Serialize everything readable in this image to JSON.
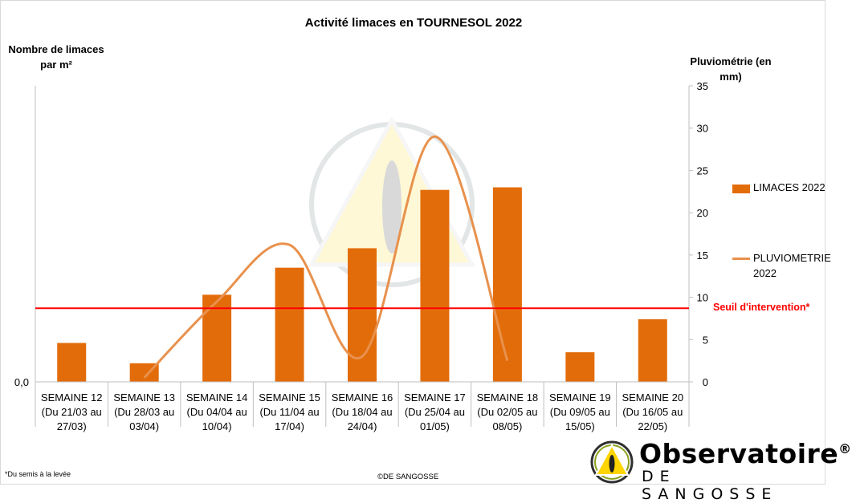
{
  "chart_data": {
    "type": "bar",
    "title": "Activité limaces en TOURNESOL 2022",
    "ylabel_left": "Nombre de limaces par m²",
    "ylabel_right": "Pluviométrie (en mm)",
    "categories": [
      "SEMAINE 12 (Du 21/03 au 27/03)",
      "SEMAINE 13 (Du 28/03 au 03/04)",
      "SEMAINE 14 (Du 04/04 au 10/04)",
      "SEMAINE 15 (Du 11/04 au 17/04)",
      "SEMAINE 16 (Du 18/04 au 24/04)",
      "SEMAINE 17 (Du 25/04 au 01/05)",
      "SEMAINE 18 (Du 02/05 au 08/05)",
      "SEMAINE 19 (Du 09/05 au 15/05)",
      "SEMAINE 20 (Du 16/05 au 22/05)"
    ],
    "category_lines": [
      [
        "SEMAINE 12",
        "(Du 21/03 au",
        "27/03)"
      ],
      [
        "SEMAINE 13",
        "(Du 28/03 au",
        "03/04)"
      ],
      [
        "SEMAINE 14",
        "(Du 04/04 au",
        "10/04)"
      ],
      [
        "SEMAINE 15",
        "(Du 11/04 au",
        "17/04)"
      ],
      [
        "SEMAINE 16",
        "(Du 18/04 au",
        "24/04)"
      ],
      [
        "SEMAINE 17",
        "(Du 25/04 au",
        "01/05)"
      ],
      [
        "SEMAINE 18",
        "(Du 02/05 au",
        "08/05)"
      ],
      [
        "SEMAINE 19",
        "(Du 09/05 au",
        "15/05)"
      ],
      [
        "SEMAINE 20",
        "(Du 16/05 au",
        "22/05)"
      ]
    ],
    "series": [
      {
        "name": "LIMACES 2022",
        "axis": "left",
        "type": "bar",
        "color": "#e36c0a",
        "values": [
          4.6,
          2.2,
          10.3,
          13.5,
          15.8,
          22.7,
          23.0,
          3.5,
          7.4
        ]
      },
      {
        "name": "PLUVIOMETRIE 2022",
        "axis": "right",
        "type": "line",
        "smooth": true,
        "color": "#e8914d",
        "values": [
          null,
          0.5,
          9.5,
          16.2,
          3.0,
          29.0,
          2.5,
          null,
          null
        ]
      }
    ],
    "y_left": {
      "min": 0,
      "max": 35,
      "tick_labels": [
        "0,0"
      ]
    },
    "y_right": {
      "min": 0,
      "max": 35,
      "ticks": [
        0,
        5,
        10,
        15,
        20,
        25,
        30,
        35
      ]
    },
    "threshold": {
      "value": 8.7,
      "label": "Seuil d'intervention*",
      "color": "#ff0000"
    },
    "legend": {
      "position": "right"
    },
    "grid": false
  },
  "footer": {
    "footnote": "*Du semis à la levée",
    "copyright": "©DE SANGOSSE"
  },
  "logo": {
    "name": "Observatoire",
    "registered": "®",
    "subtitle": "DE SANGOSSE"
  }
}
